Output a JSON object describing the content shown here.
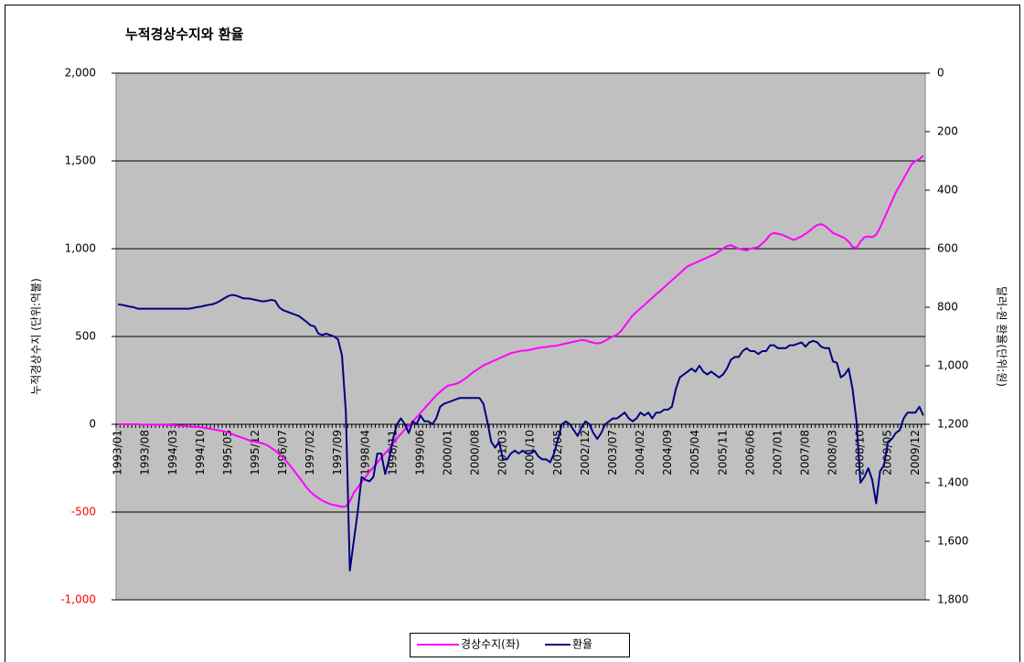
{
  "chart_data": {
    "type": "line",
    "title": "누적경상수지와 환율",
    "ylabel": "누적경상수지 (단위:억불)",
    "y2label": "달러-원 환율(단위:원)",
    "ylim": [
      -1000,
      2000
    ],
    "yticks": [
      {
        "value": -1000,
        "label": "-1,000"
      },
      -500,
      0,
      500,
      {
        "value": 1000,
        "label": "1,000"
      },
      {
        "value": 1500,
        "label": "1,500"
      },
      {
        "value": 2000,
        "label": "2,000"
      }
    ],
    "y2lim": [
      0,
      1800
    ],
    "y2_inverted": true,
    "y2ticks": [
      0,
      200,
      400,
      600,
      800,
      {
        "value": 1000,
        "label": "1,000"
      },
      {
        "value": 1200,
        "label": "1,200"
      },
      {
        "value": 1400,
        "label": "1,400"
      },
      {
        "value": 1600,
        "label": "1,600"
      },
      {
        "value": 1800,
        "label": "1,800"
      }
    ],
    "grid": true,
    "legend": "bottom",
    "negative_tick_color": "#ff0000",
    "categories": [
      "1993/01",
      null,
      null,
      null,
      null,
      null,
      null,
      "1993/08",
      null,
      null,
      null,
      null,
      null,
      null,
      "1994/03",
      null,
      null,
      null,
      null,
      null,
      null,
      "1994/10",
      null,
      null,
      null,
      null,
      null,
      null,
      "1995/05",
      null,
      null,
      null,
      null,
      null,
      null,
      "1995/12",
      null,
      null,
      null,
      null,
      null,
      null,
      "1996/07",
      null,
      null,
      null,
      null,
      null,
      null,
      "1997/02",
      null,
      null,
      null,
      null,
      null,
      null,
      "1997/09",
      null,
      null,
      null,
      null,
      null,
      null,
      "1998/04",
      null,
      null,
      null,
      null,
      null,
      null,
      "1998/11",
      null,
      null,
      null,
      null,
      null,
      null,
      "1999/06",
      null,
      null,
      null,
      null,
      null,
      null,
      "2000/01",
      null,
      null,
      null,
      null,
      null,
      null,
      "2000/08",
      null,
      null,
      null,
      null,
      null,
      null,
      "2001/03",
      null,
      null,
      null,
      null,
      null,
      null,
      "2001/10",
      null,
      null,
      null,
      null,
      null,
      null,
      "2002/05",
      null,
      null,
      null,
      null,
      null,
      null,
      "2002/12",
      null,
      null,
      null,
      null,
      null,
      null,
      "2003/07",
      null,
      null,
      null,
      null,
      null,
      null,
      "2004/02",
      null,
      null,
      null,
      null,
      null,
      null,
      "2004/09",
      null,
      null,
      null,
      null,
      null,
      null,
      "2005/04",
      null,
      null,
      null,
      null,
      null,
      null,
      "2005/11",
      null,
      null,
      null,
      null,
      null,
      null,
      "2006/06",
      null,
      null,
      null,
      null,
      null,
      null,
      "2007/01",
      null,
      null,
      null,
      null,
      null,
      null,
      "2007/08",
      null,
      null,
      null,
      null,
      null,
      null,
      "2008/03",
      null,
      null,
      null,
      null,
      null,
      null,
      "2008/10",
      null,
      null,
      null,
      null,
      null,
      null,
      "2009/05",
      null,
      null,
      null,
      null,
      null,
      null,
      "2009/12",
      null,
      null
    ],
    "series": [
      {
        "name": "경상수지(좌)",
        "color": "#ff00ff",
        "values": [
          0,
          0,
          0,
          0,
          0,
          0,
          -2,
          -2,
          -2,
          -2,
          -2,
          -3,
          -3,
          -4,
          -5,
          -7,
          -8,
          -10,
          -12,
          -14,
          -15,
          -17,
          -20,
          -24,
          -28,
          -32,
          -36,
          -40,
          -48,
          -55,
          -65,
          -72,
          -80,
          -88,
          -95,
          -100,
          -105,
          -110,
          -120,
          -135,
          -150,
          -170,
          -190,
          -215,
          -240,
          -270,
          -300,
          -330,
          -360,
          -385,
          -405,
          -420,
          -435,
          -445,
          -455,
          -460,
          -465,
          -470,
          -468,
          -440,
          -390,
          -360,
          -330,
          -300,
          -270,
          -245,
          -220,
          -190,
          -165,
          -140,
          -110,
          -80,
          -55,
          -30,
          -10,
          15,
          40,
          65,
          90,
          115,
          140,
          165,
          185,
          205,
          220,
          225,
          230,
          240,
          255,
          270,
          290,
          305,
          320,
          335,
          345,
          355,
          365,
          375,
          385,
          395,
          405,
          410,
          415,
          420,
          420,
          425,
          430,
          435,
          438,
          440,
          445,
          445,
          450,
          455,
          460,
          465,
          470,
          475,
          480,
          478,
          470,
          465,
          460,
          465,
          475,
          490,
          500,
          510,
          530,
          560,
          590,
          620,
          640,
          660,
          680,
          700,
          720,
          740,
          760,
          780,
          800,
          820,
          840,
          860,
          880,
          900,
          910,
          920,
          930,
          940,
          950,
          960,
          970,
          985,
          1000,
          1015,
          1020,
          1010,
          1000,
          995,
          990,
          1000,
          1005,
          1010,
          1030,
          1050,
          1080,
          1090,
          1085,
          1080,
          1070,
          1060,
          1050,
          1060,
          1070,
          1085,
          1100,
          1120,
          1135,
          1140,
          1130,
          1110,
          1090,
          1080,
          1070,
          1060,
          1040,
          1010,
          1005,
          1040,
          1065,
          1070,
          1065,
          1080,
          1120,
          1170,
          1220,
          1270,
          1320,
          1360,
          1400,
          1440,
          1480,
          1500,
          1510,
          1530
        ]
      },
      {
        "name": "환율",
        "color": "#000080",
        "axis": "y2",
        "values": [
          790,
          792,
          795,
          798,
          800,
          805,
          805,
          805,
          805,
          805,
          805,
          805,
          805,
          805,
          805,
          805,
          805,
          805,
          805,
          803,
          800,
          798,
          795,
          792,
          790,
          785,
          778,
          770,
          762,
          758,
          760,
          765,
          770,
          770,
          772,
          775,
          778,
          780,
          778,
          775,
          778,
          800,
          810,
          815,
          820,
          825,
          830,
          840,
          850,
          862,
          865,
          890,
          895,
          890,
          895,
          900,
          910,
          965,
          1160,
          1700,
          1600,
          1500,
          1380,
          1390,
          1395,
          1380,
          1300,
          1300,
          1370,
          1320,
          1250,
          1200,
          1180,
          1200,
          1230,
          1190,
          1200,
          1170,
          1190,
          1190,
          1200,
          1180,
          1140,
          1130,
          1125,
          1120,
          1115,
          1110,
          1110,
          1110,
          1110,
          1110,
          1110,
          1130,
          1190,
          1260,
          1280,
          1260,
          1320,
          1320,
          1300,
          1290,
          1300,
          1290,
          1300,
          1300,
          1290,
          1310,
          1320,
          1320,
          1330,
          1300,
          1250,
          1200,
          1190,
          1200,
          1220,
          1240,
          1210,
          1190,
          1200,
          1230,
          1250,
          1230,
          1200,
          1190,
          1180,
          1180,
          1170,
          1160,
          1180,
          1190,
          1180,
          1160,
          1170,
          1160,
          1180,
          1160,
          1160,
          1150,
          1150,
          1140,
          1080,
          1040,
          1030,
          1020,
          1010,
          1020,
          1000,
          1020,
          1030,
          1020,
          1030,
          1040,
          1030,
          1010,
          980,
          970,
          970,
          950,
          940,
          950,
          950,
          960,
          950,
          950,
          930,
          930,
          940,
          940,
          940,
          930,
          930,
          925,
          920,
          935,
          920,
          915,
          920,
          935,
          940,
          940,
          985,
          990,
          1040,
          1030,
          1010,
          1080,
          1190,
          1400,
          1380,
          1350,
          1390,
          1470,
          1360,
          1340,
          1260,
          1250,
          1230,
          1220,
          1180,
          1160,
          1160,
          1160,
          1140,
          1170
        ]
      }
    ]
  }
}
